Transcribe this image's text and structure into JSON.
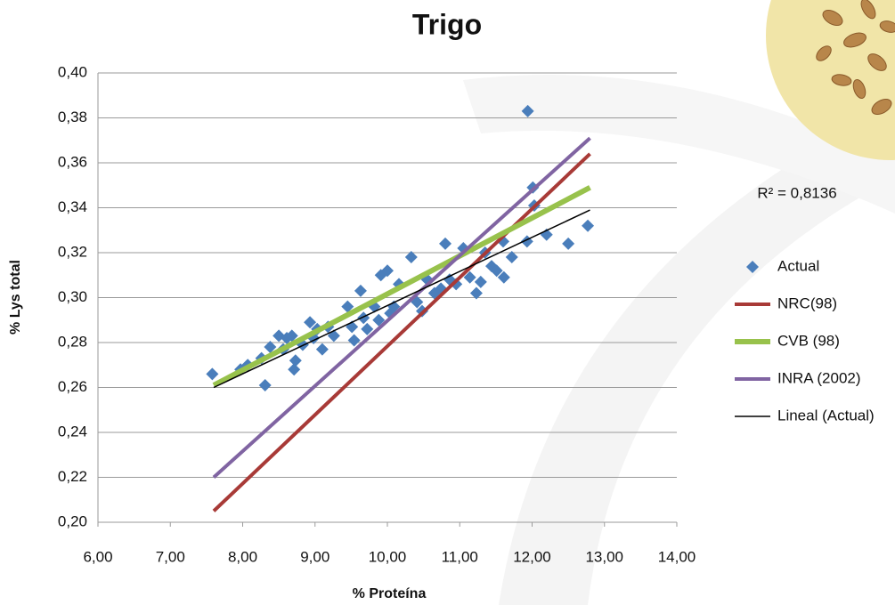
{
  "chart_data": {
    "type": "scatter",
    "title": "Trigo",
    "x_label": "% Proteína",
    "y_label": "% Lys total",
    "annotation": "R² = 0,8136",
    "xlim": [
      6,
      14
    ],
    "ylim": [
      0.2,
      0.4
    ],
    "xticks": [
      {
        "value": 6,
        "label": "6,00"
      },
      {
        "value": 7,
        "label": "7,00"
      },
      {
        "value": 8,
        "label": "8,00"
      },
      {
        "value": 9,
        "label": "9,00"
      },
      {
        "value": 10,
        "label": "10,00"
      },
      {
        "value": 11,
        "label": "11,00"
      },
      {
        "value": 12,
        "label": "12,00"
      },
      {
        "value": 13,
        "label": "13,00"
      },
      {
        "value": 14,
        "label": "14,00"
      }
    ],
    "yticks": [
      {
        "value": 0.2,
        "label": "0,20"
      },
      {
        "value": 0.22,
        "label": "0,22"
      },
      {
        "value": 0.24,
        "label": "0,24"
      },
      {
        "value": 0.26,
        "label": "0,26"
      },
      {
        "value": 0.28,
        "label": "0,28"
      },
      {
        "value": 0.3,
        "label": "0,30"
      },
      {
        "value": 0.32,
        "label": "0,32"
      },
      {
        "value": 0.34,
        "label": "0,34"
      },
      {
        "value": 0.36,
        "label": "0,36"
      },
      {
        "value": 0.38,
        "label": "0,38"
      },
      {
        "value": 0.4,
        "label": "0,40"
      }
    ],
    "grid": true,
    "legend": "right",
    "series": [
      {
        "name": "Actual",
        "type": "scatter",
        "color": "#4a7ebb",
        "x": [
          7.58,
          7.97,
          8.07,
          8.31,
          8.26,
          8.38,
          8.5,
          8.56,
          8.61,
          8.68,
          8.71,
          8.73,
          8.83,
          8.93,
          8.98,
          9.03,
          9.1,
          9.18,
          9.26,
          9.45,
          9.51,
          9.54,
          9.63,
          9.67,
          9.72,
          9.82,
          9.88,
          9.91,
          10.0,
          10.04,
          10.09,
          10.16,
          10.33,
          10.41,
          10.48,
          10.55,
          10.65,
          10.74,
          10.8,
          10.86,
          10.95,
          11.05,
          11.14,
          11.23,
          11.29,
          11.35,
          11.44,
          11.51,
          11.6,
          11.61,
          11.72,
          11.93,
          11.94,
          12.01,
          12.03,
          12.2,
          12.5,
          12.77
        ],
        "values": [
          0.266,
          0.268,
          0.27,
          0.261,
          0.273,
          0.278,
          0.283,
          0.277,
          0.282,
          0.283,
          0.268,
          0.272,
          0.279,
          0.289,
          0.282,
          0.286,
          0.277,
          0.287,
          0.283,
          0.296,
          0.287,
          0.281,
          0.303,
          0.291,
          0.286,
          0.296,
          0.29,
          0.31,
          0.312,
          0.293,
          0.296,
          0.306,
          0.318,
          0.298,
          0.294,
          0.308,
          0.302,
          0.304,
          0.324,
          0.308,
          0.306,
          0.322,
          0.309,
          0.302,
          0.307,
          0.32,
          0.314,
          0.312,
          0.325,
          0.309,
          0.318,
          0.325,
          0.383,
          0.349,
          0.341,
          0.328,
          0.324,
          0.332
        ]
      },
      {
        "name": "NRC(98)",
        "type": "line",
        "color": "#a83a37",
        "x": [
          7.6,
          12.8
        ],
        "values": [
          0.205,
          0.364
        ]
      },
      {
        "name": "CVB (98)",
        "type": "line",
        "color": "#98c24c",
        "x": [
          7.6,
          12.8
        ],
        "values": [
          0.261,
          0.349
        ]
      },
      {
        "name": "INRA (2002)",
        "type": "line",
        "color": "#8064a2",
        "x": [
          7.6,
          12.8
        ],
        "values": [
          0.22,
          0.371
        ]
      },
      {
        "name": "Lineal (Actual)",
        "type": "line",
        "color": "#000000",
        "x": [
          7.6,
          12.8
        ],
        "values": [
          0.26,
          0.339
        ]
      }
    ]
  }
}
